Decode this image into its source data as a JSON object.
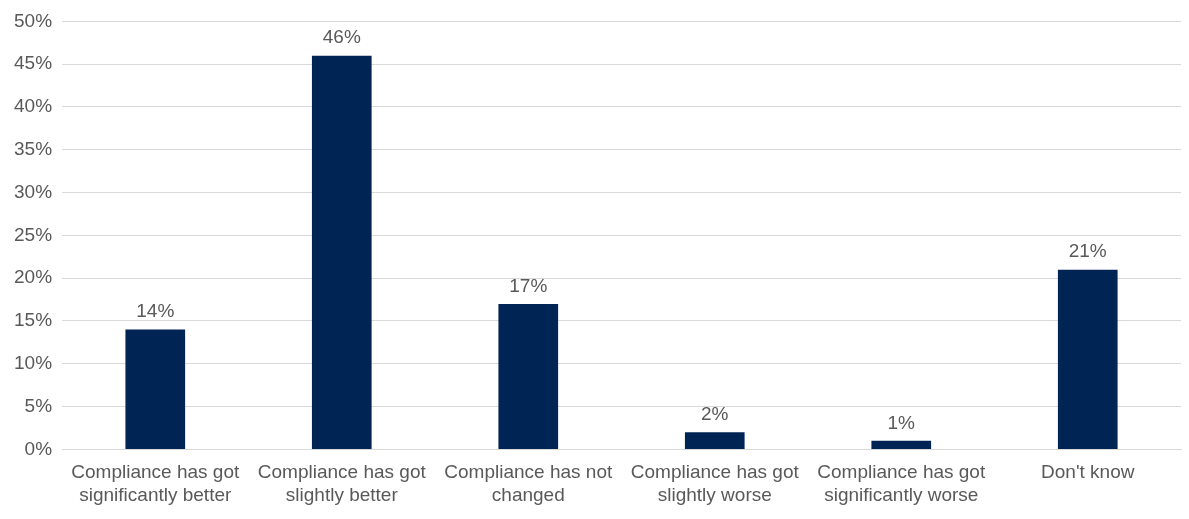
{
  "chart_data": {
    "type": "bar",
    "categories": [
      "Compliance has got significantly better",
      "Compliance has got slightly better",
      "Compliance has not changed",
      "Compliance has got slightly worse",
      "Compliance has got significantly worse",
      "Don't know"
    ],
    "values": [
      14,
      46,
      17,
      2,
      1,
      21
    ],
    "color": "#002554",
    "ylim": [
      0,
      50
    ],
    "yticks": [
      {
        "value": 0,
        "label": "0%"
      },
      {
        "value": 5,
        "label": "5%"
      },
      {
        "value": 10,
        "label": "10%"
      },
      {
        "value": 15,
        "label": "15%"
      },
      {
        "value": 20,
        "label": "20%"
      },
      {
        "value": 25,
        "label": "25%"
      },
      {
        "value": 30,
        "label": "30%"
      },
      {
        "value": 35,
        "label": "35%"
      },
      {
        "value": 40,
        "label": "40%"
      },
      {
        "value": 45,
        "label": "45%"
      },
      {
        "value": 50,
        "label": "50%"
      }
    ],
    "value_labels": [
      "14%",
      "46%",
      "17%",
      "2%",
      "1%",
      "21%"
    ],
    "grid": "y"
  }
}
